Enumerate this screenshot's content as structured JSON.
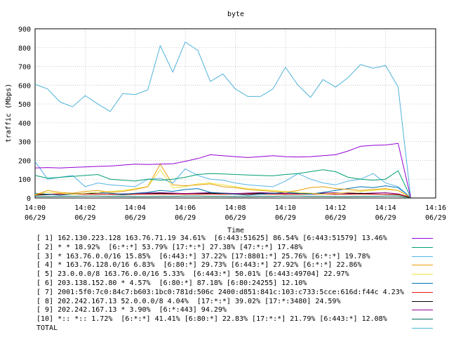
{
  "chart_data": {
    "type": "line",
    "title": "byte",
    "xlabel": "Time",
    "ylabel": "traffic (Mbps)",
    "ylim": [
      0,
      900
    ],
    "yticks": [
      0,
      100,
      200,
      300,
      400,
      500,
      600,
      700,
      800,
      900
    ],
    "xlim": [
      "14:00",
      "14:16"
    ],
    "xticks": [
      {
        "time": "14:00",
        "date": "06/29"
      },
      {
        "time": "14:02",
        "date": "06/29"
      },
      {
        "time": "14:04",
        "date": "06/29"
      },
      {
        "time": "14:06",
        "date": "06/29"
      },
      {
        "time": "14:08",
        "date": "06/29"
      },
      {
        "time": "14:10",
        "date": "06/29"
      },
      {
        "time": "14:12",
        "date": "06/29"
      },
      {
        "time": "14:14",
        "date": "06/29"
      },
      {
        "time": "14:16",
        "date": "06/29"
      }
    ],
    "grid": true,
    "legend_position": "bottom",
    "x": [
      "14:00:00",
      "14:00:30",
      "14:01:00",
      "14:01:30",
      "14:02:00",
      "14:02:30",
      "14:03:00",
      "14:03:30",
      "14:04:00",
      "14:04:30",
      "14:05:00",
      "14:05:30",
      "14:06:00",
      "14:06:30",
      "14:07:00",
      "14:07:30",
      "14:08:00",
      "14:08:30",
      "14:09:00",
      "14:09:30",
      "14:10:00",
      "14:10:30",
      "14:11:00",
      "14:11:30",
      "14:12:00",
      "14:12:30",
      "14:13:00",
      "14:13:30",
      "14:14:00",
      "14:14:30",
      "14:15:00"
    ],
    "series": [
      {
        "name": "[ 1] 162.130.223.128 163.76.71.19 34.61%  [6:443:51625] 86.54% [6:443:51579] 13.46%",
        "color": "#9400d3",
        "values": [
          160,
          162,
          160,
          163,
          165,
          168,
          170,
          175,
          180,
          178,
          180,
          182,
          195,
          210,
          230,
          225,
          220,
          215,
          220,
          225,
          220,
          218,
          220,
          225,
          230,
          250,
          275,
          280,
          282,
          290,
          5
        ]
      },
      {
        "name": "[ 2] * * 18.92%  [6:*:*] 53.79% [17:*:*] 27.38% [47:*:*] 17.48%",
        "color": "#009e73",
        "values": [
          120,
          105,
          110,
          115,
          120,
          125,
          100,
          95,
          90,
          100,
          95,
          100,
          110,
          125,
          130,
          128,
          125,
          122,
          120,
          118,
          125,
          130,
          140,
          150,
          140,
          110,
          100,
          95,
          100,
          145,
          5
        ]
      },
      {
        "name": "[ 3] * 163.76.0.0/16 15.85%  [6:443:*] 37.22% [17:8801:*] 25.76% [6:*:*] 19.78%",
        "color": "#56b4e9",
        "values": [
          195,
          100,
          110,
          120,
          60,
          80,
          70,
          65,
          60,
          100,
          105,
          80,
          155,
          120,
          100,
          95,
          80,
          70,
          65,
          60,
          90,
          130,
          100,
          80,
          70,
          90,
          100,
          130,
          80,
          60,
          5
        ]
      },
      {
        "name": "[ 4] * 163.76.128.0/16 6.83%  [6:80:*] 29.73% [6:443:*] 27.92% [6:*:*] 22.86%",
        "color": "#e69f00",
        "values": [
          15,
          40,
          30,
          25,
          35,
          40,
          30,
          35,
          45,
          60,
          180,
          70,
          65,
          70,
          75,
          60,
          55,
          45,
          40,
          35,
          30,
          40,
          55,
          60,
          50,
          45,
          40,
          45,
          50,
          40,
          5
        ]
      },
      {
        "name": "[ 5] 23.0.0.0/8 163.76.0.0/16 5.33%  [6:443:*] 50.01% [6:443:49704] 22.97%",
        "color": "#f0e442",
        "values": [
          20,
          30,
          25,
          20,
          25,
          30,
          35,
          40,
          50,
          60,
          150,
          55,
          60,
          75,
          80,
          70,
          60,
          50,
          45,
          40,
          35,
          30,
          25,
          20,
          25,
          30,
          35,
          40,
          45,
          40,
          5
        ]
      },
      {
        "name": "[ 6] 203.138.152.80 * 4.57%  [6:80:*] 87.18% [6:80:24255] 12.10%",
        "color": "#0072b2",
        "values": [
          25,
          20,
          15,
          20,
          25,
          30,
          25,
          20,
          25,
          30,
          40,
          35,
          45,
          50,
          30,
          25,
          20,
          15,
          20,
          25,
          30,
          25,
          20,
          30,
          40,
          50,
          60,
          55,
          65,
          55,
          5
        ]
      },
      {
        "name": "[ 7] 2001:5f0:7c0:84c7:b603:1bc0:781d:506c 2400:d851:841c:103:c733:5cce:616d:f44c 4.23%",
        "color": "#e51e10",
        "values": [
          20,
          20,
          20,
          20,
          20,
          20,
          20,
          20,
          20,
          20,
          20,
          20,
          20,
          20,
          20,
          20,
          20,
          20,
          20,
          20,
          20,
          20,
          20,
          20,
          20,
          20,
          20,
          20,
          20,
          20,
          5
        ]
      },
      {
        "name": "[ 8] 202.242.167.13 52.0.0.0/8 4.04%  [17:*:*] 39.02% [17:*:3480] 24.59%",
        "color": "#000000",
        "values": [
          15,
          18,
          20,
          22,
          25,
          22,
          20,
          18,
          20,
          22,
          25,
          22,
          20,
          22,
          25,
          22,
          20,
          22,
          25,
          22,
          20,
          22,
          25,
          22,
          20,
          22,
          25,
          22,
          20,
          18,
          5
        ]
      },
      {
        "name": "[ 9] 202.242.167.13 * 3.90%  [6:*:443] 94.29%",
        "color": "#8b008b",
        "values": [
          20,
          20,
          22,
          22,
          24,
          22,
          20,
          22,
          24,
          26,
          28,
          26,
          24,
          26,
          28,
          26,
          24,
          26,
          28,
          26,
          24,
          22,
          24,
          26,
          28,
          26,
          24,
          26,
          28,
          22,
          5
        ]
      },
      {
        "name": "[10] *:: *:: 1.72%  [6:*:*] 41.41% [6:80:*] 22.83% [17:*:*] 21.79% [6:443:*] 12.08%",
        "color": "#006d5b",
        "values": [
          8,
          8,
          9,
          9,
          10,
          10,
          9,
          9,
          8,
          8,
          9,
          9,
          10,
          10,
          9,
          9,
          8,
          8,
          9,
          9,
          10,
          10,
          9,
          9,
          8,
          8,
          9,
          9,
          10,
          10,
          3
        ]
      },
      {
        "name": "TOTAL",
        "color": "#4fb2d9",
        "values": [
          605,
          580,
          510,
          485,
          545,
          500,
          460,
          555,
          550,
          575,
          810,
          670,
          830,
          785,
          620,
          660,
          580,
          540,
          540,
          580,
          695,
          600,
          535,
          630,
          590,
          640,
          710,
          690,
          705,
          590,
          5
        ]
      }
    ]
  }
}
